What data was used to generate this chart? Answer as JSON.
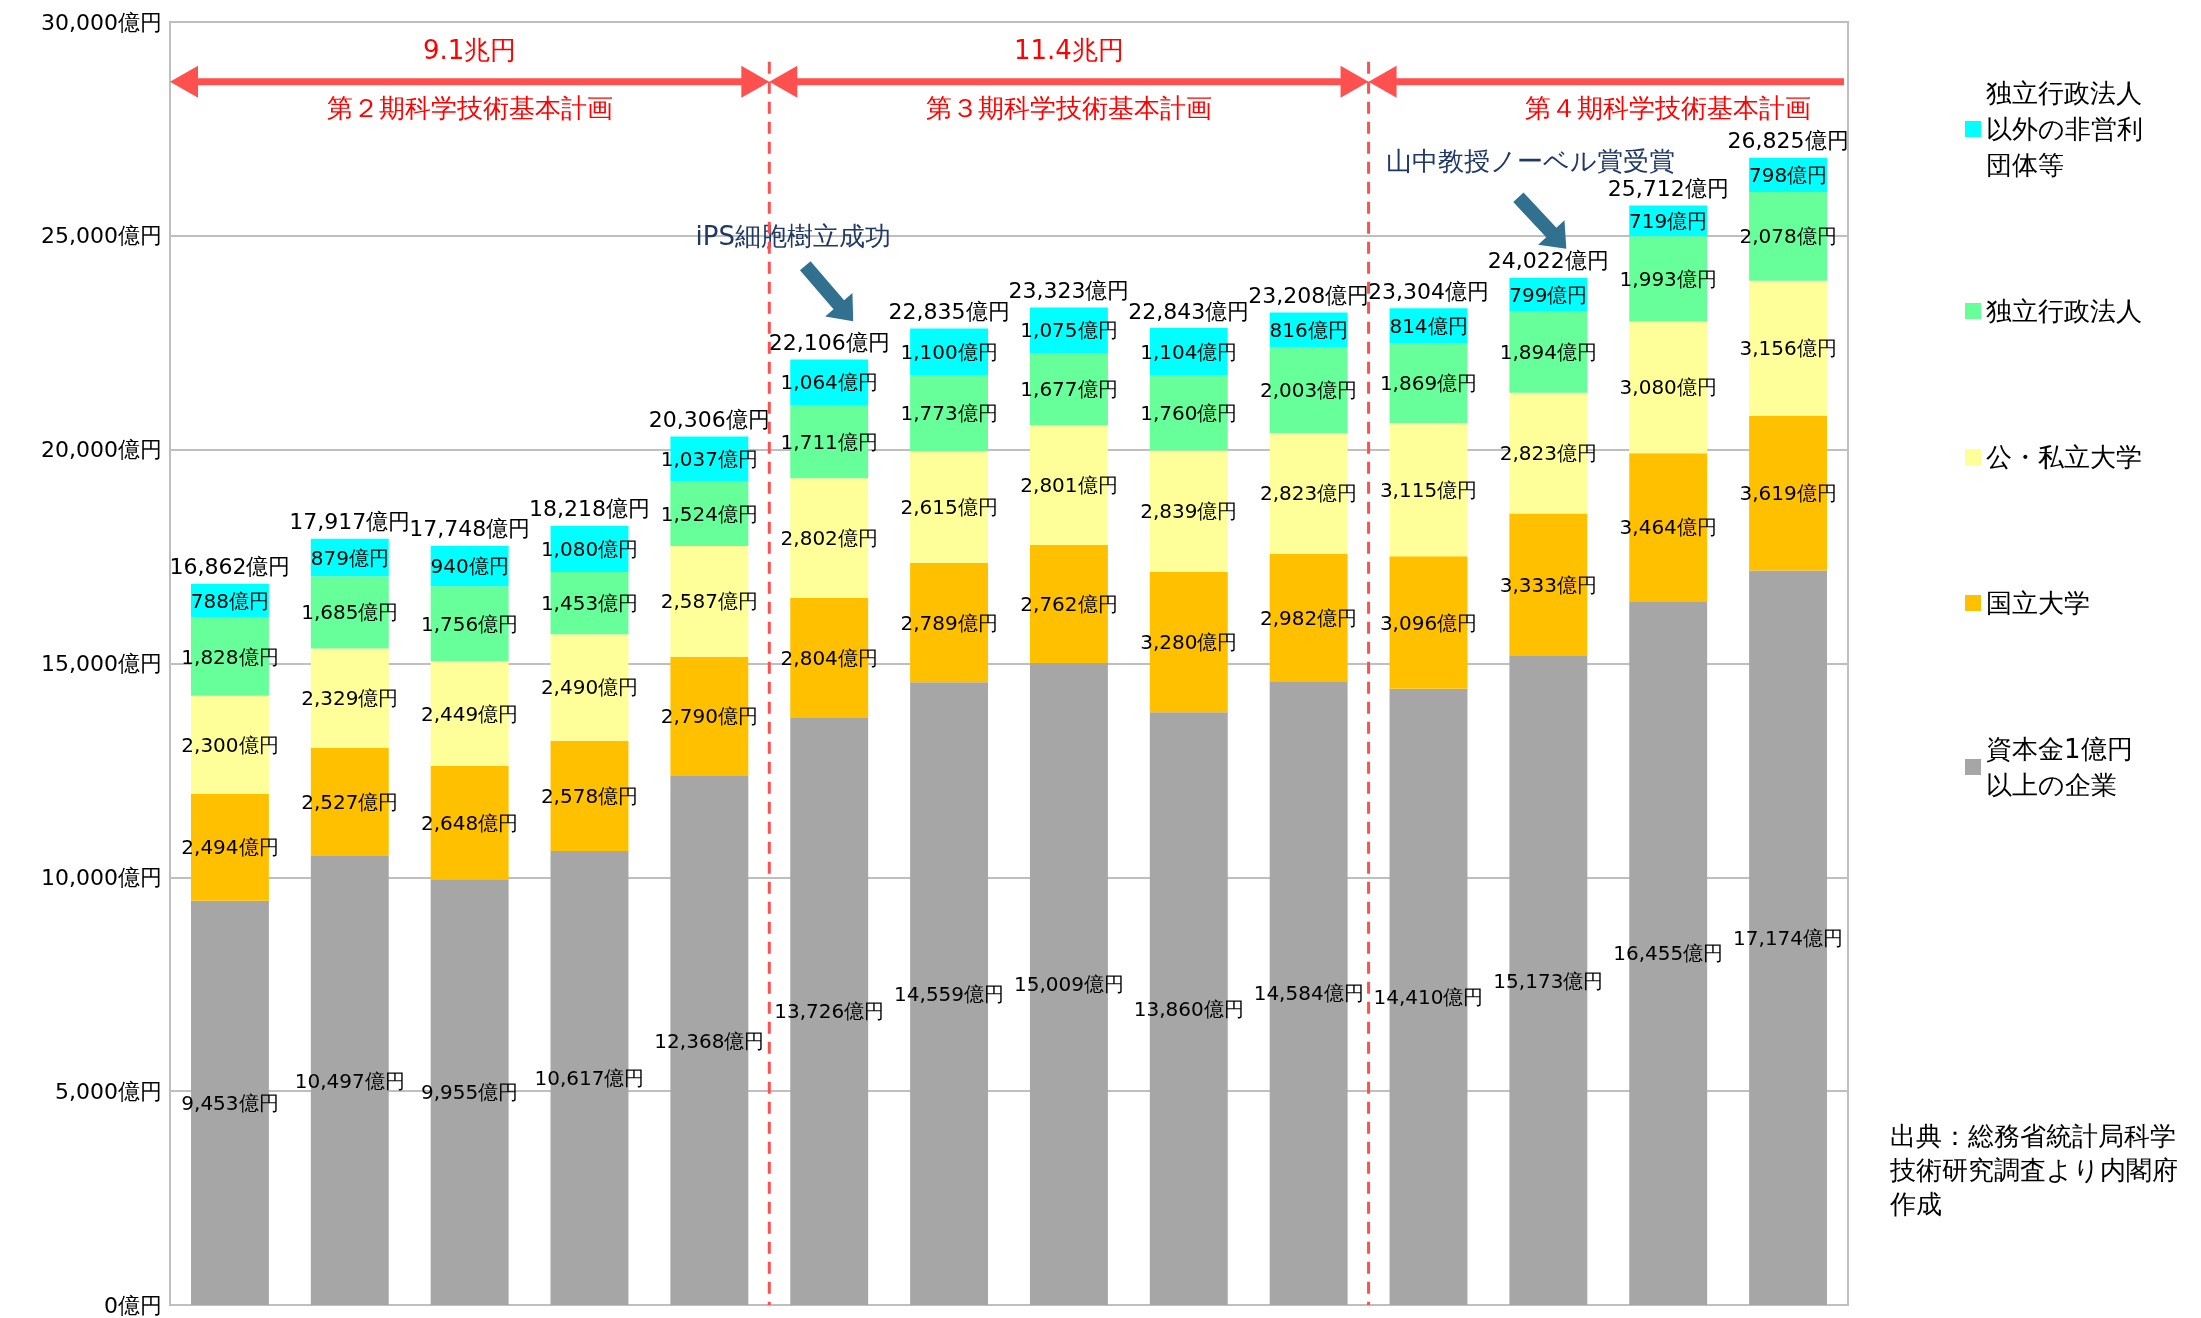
{
  "chart_data": {
    "type": "bar",
    "stacked": true,
    "categories": [
      null,
      null,
      null,
      null,
      null,
      null,
      null,
      null,
      null,
      null,
      null,
      null,
      null,
      null
    ],
    "series": [
      {
        "name": "資本金1億円以上の企業",
        "color": "#a6a6a6",
        "values": [
          9453,
          10497,
          9955,
          10617,
          12368,
          13726,
          14559,
          15009,
          13860,
          14584,
          14410,
          15173,
          16455,
          17174
        ],
        "value_labels": [
          "9,453億円",
          "10,497億円",
          "9,955億円",
          "10,617億円",
          "12,368億円",
          "13,726億円",
          "14,559億円",
          "15,009億円",
          "13,860億円",
          "14,584億円",
          "14,410億円",
          "15,173億円",
          "16,455億円",
          "17,174億円"
        ]
      },
      {
        "name": "国立大学",
        "color": "#ffc000",
        "values": [
          2494,
          2527,
          2648,
          2578,
          2790,
          2804,
          2789,
          2762,
          3280,
          2982,
          3096,
          3333,
          3464,
          3619
        ],
        "value_labels": [
          "2,494億円",
          "2,527億円",
          "2,648億円",
          "2,578億円",
          "2,790億円",
          "2,804億円",
          "2,789億円",
          "2,762億円",
          "3,280億円",
          "2,982億円",
          "3,096億円",
          "3,333億円",
          "3,464億円",
          "3,619億円"
        ]
      },
      {
        "name": "公・私立大学",
        "color": "#ffff99",
        "values": [
          2300,
          2329,
          2449,
          2490,
          2587,
          2802,
          2615,
          2801,
          2839,
          2823,
          3115,
          2823,
          3080,
          3156
        ],
        "value_labels": [
          "2,300億円",
          "2,329億円",
          "2,449億円",
          "2,490億円",
          "2,587億円",
          "2,802億円",
          "2,615億円",
          "2,801億円",
          "2,839億円",
          "2,823億円",
          "3,115億円",
          "2,823億円",
          "3,080億円",
          "3,156億円"
        ]
      },
      {
        "name": "独立行政法人",
        "color": "#66ff99",
        "values": [
          1828,
          1685,
          1756,
          1453,
          1524,
          1711,
          1773,
          1677,
          1760,
          2003,
          1869,
          1894,
          1993,
          2078
        ],
        "value_labels": [
          "1,828億円",
          "1,685億円",
          "1,756億円",
          "1,453億円",
          "1,524億円",
          "1,711億円",
          "1,773億円",
          "1,677億円",
          "1,760億円",
          "2,003億円",
          "1,869億円",
          "1,894億円",
          "1,993億円",
          "2,078億円"
        ]
      },
      {
        "name": "独立行政法人以外の非営利団体等",
        "color": "#00ffff",
        "values": [
          788,
          879,
          940,
          1080,
          1037,
          1064,
          1100,
          1075,
          1104,
          816,
          814,
          799,
          719,
          798
        ],
        "value_labels": [
          "788億円",
          "879億円",
          "940億円",
          "1,080億円",
          "1,037億円",
          "1,064億円",
          "1,100億円",
          "1,075億円",
          "1,104億円",
          "816億円",
          "814億円",
          "799億円",
          "719億円",
          "798億円"
        ]
      }
    ],
    "totals": [
      "16,862億円",
      "17,917億円",
      "17,748億円",
      "18,218億円",
      "20,306億円",
      "22,106億円",
      "22,835億円",
      "23,323億円",
      "22,843億円",
      "23,208億円",
      "23,304億円",
      "24,022億円",
      "25,712億円",
      "26,825億円"
    ],
    "ylim": [
      0,
      30000
    ],
    "yticks": [
      {
        "value": 0,
        "label": "0億円"
      },
      {
        "value": 5000,
        "label": "5,000億円"
      },
      {
        "value": 10000,
        "label": "10,000億円"
      },
      {
        "value": 15000,
        "label": "15,000億円"
      },
      {
        "value": 20000,
        "label": "20,000億円"
      },
      {
        "value": 25000,
        "label": "25,000億円"
      },
      {
        "value": 30000,
        "label": "30,000億円"
      }
    ],
    "grid": "y",
    "legend": "right",
    "annotations": [
      "9.1兆円",
      "第２期科学技術基本計画",
      "11.4兆円",
      "第３期科学技術基本計画",
      "第４期科学技術基本計画",
      "iPS細胞樹立成功",
      "山中教授ノーベル賞受賞",
      "出典：総務省統計局科学技術研究調査より内閣府作成"
    ]
  }
}
